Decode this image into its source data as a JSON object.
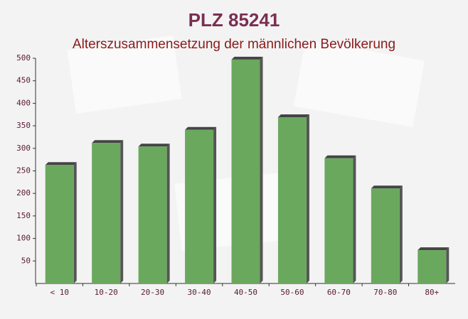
{
  "chart_data": {
    "type": "bar",
    "title": "PLZ 85241",
    "subtitle": "Alterszusammensetzung der männlichen Bevölkerung",
    "categories": [
      "< 10",
      "10-20",
      "20-30",
      "30-40",
      "40-50",
      "50-60",
      "60-70",
      "70-80",
      "80+"
    ],
    "values": [
      263,
      312,
      304,
      341,
      497,
      369,
      278,
      211,
      74
    ],
    "color": "#6aa85e",
    "ylim": [
      0,
      500
    ],
    "yticks": [
      50,
      100,
      150,
      200,
      250,
      300,
      350,
      400,
      450,
      500
    ],
    "grid": false
  }
}
